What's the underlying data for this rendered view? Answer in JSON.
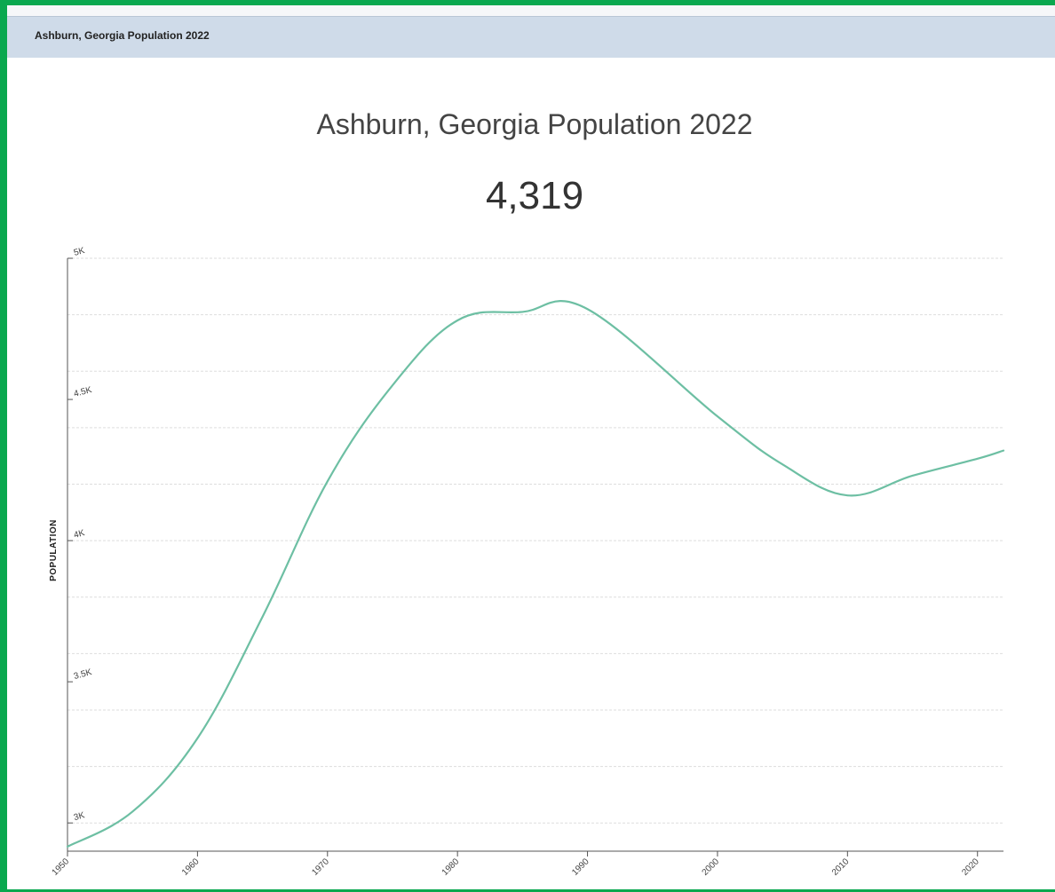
{
  "header": {
    "title": "Ashburn, Georgia Population 2022"
  },
  "chart_data": {
    "type": "line",
    "title": "Ashburn, Georgia Population 2022",
    "highlight_value": "4,319",
    "ylabel": "POPULATION",
    "xlabel": "",
    "xlim": [
      1950,
      2022
    ],
    "ylim": [
      2900,
      5000
    ],
    "x_ticks": [
      1950,
      1960,
      1970,
      1980,
      1990,
      2000,
      2010,
      2020
    ],
    "x_tick_labels": [
      "1950",
      "1960",
      "1970",
      "1980",
      "1990",
      "2000",
      "2010",
      "2020"
    ],
    "y_ticks": [
      3000,
      3500,
      4000,
      4500,
      5000
    ],
    "y_tick_labels": [
      "3K",
      "3.5K",
      "4K",
      "4.5K",
      "5K"
    ],
    "y_gridlines": [
      3000,
      3200,
      3400,
      3600,
      3800,
      4000,
      4200,
      4400,
      4600,
      4800,
      5000
    ],
    "grid": true,
    "line_color": "#6dbfa3",
    "series": [
      {
        "x": [
          1950,
          1955,
          1960,
          1965,
          1970,
          1975,
          1980,
          1985,
          1990,
          2000,
          2005,
          2010,
          2015,
          2020,
          2022
        ],
        "values": [
          2916,
          3040,
          3300,
          3730,
          4210,
          4550,
          4780,
          4810,
          4820,
          4440,
          4270,
          4160,
          4230,
          4290,
          4319
        ]
      }
    ]
  }
}
